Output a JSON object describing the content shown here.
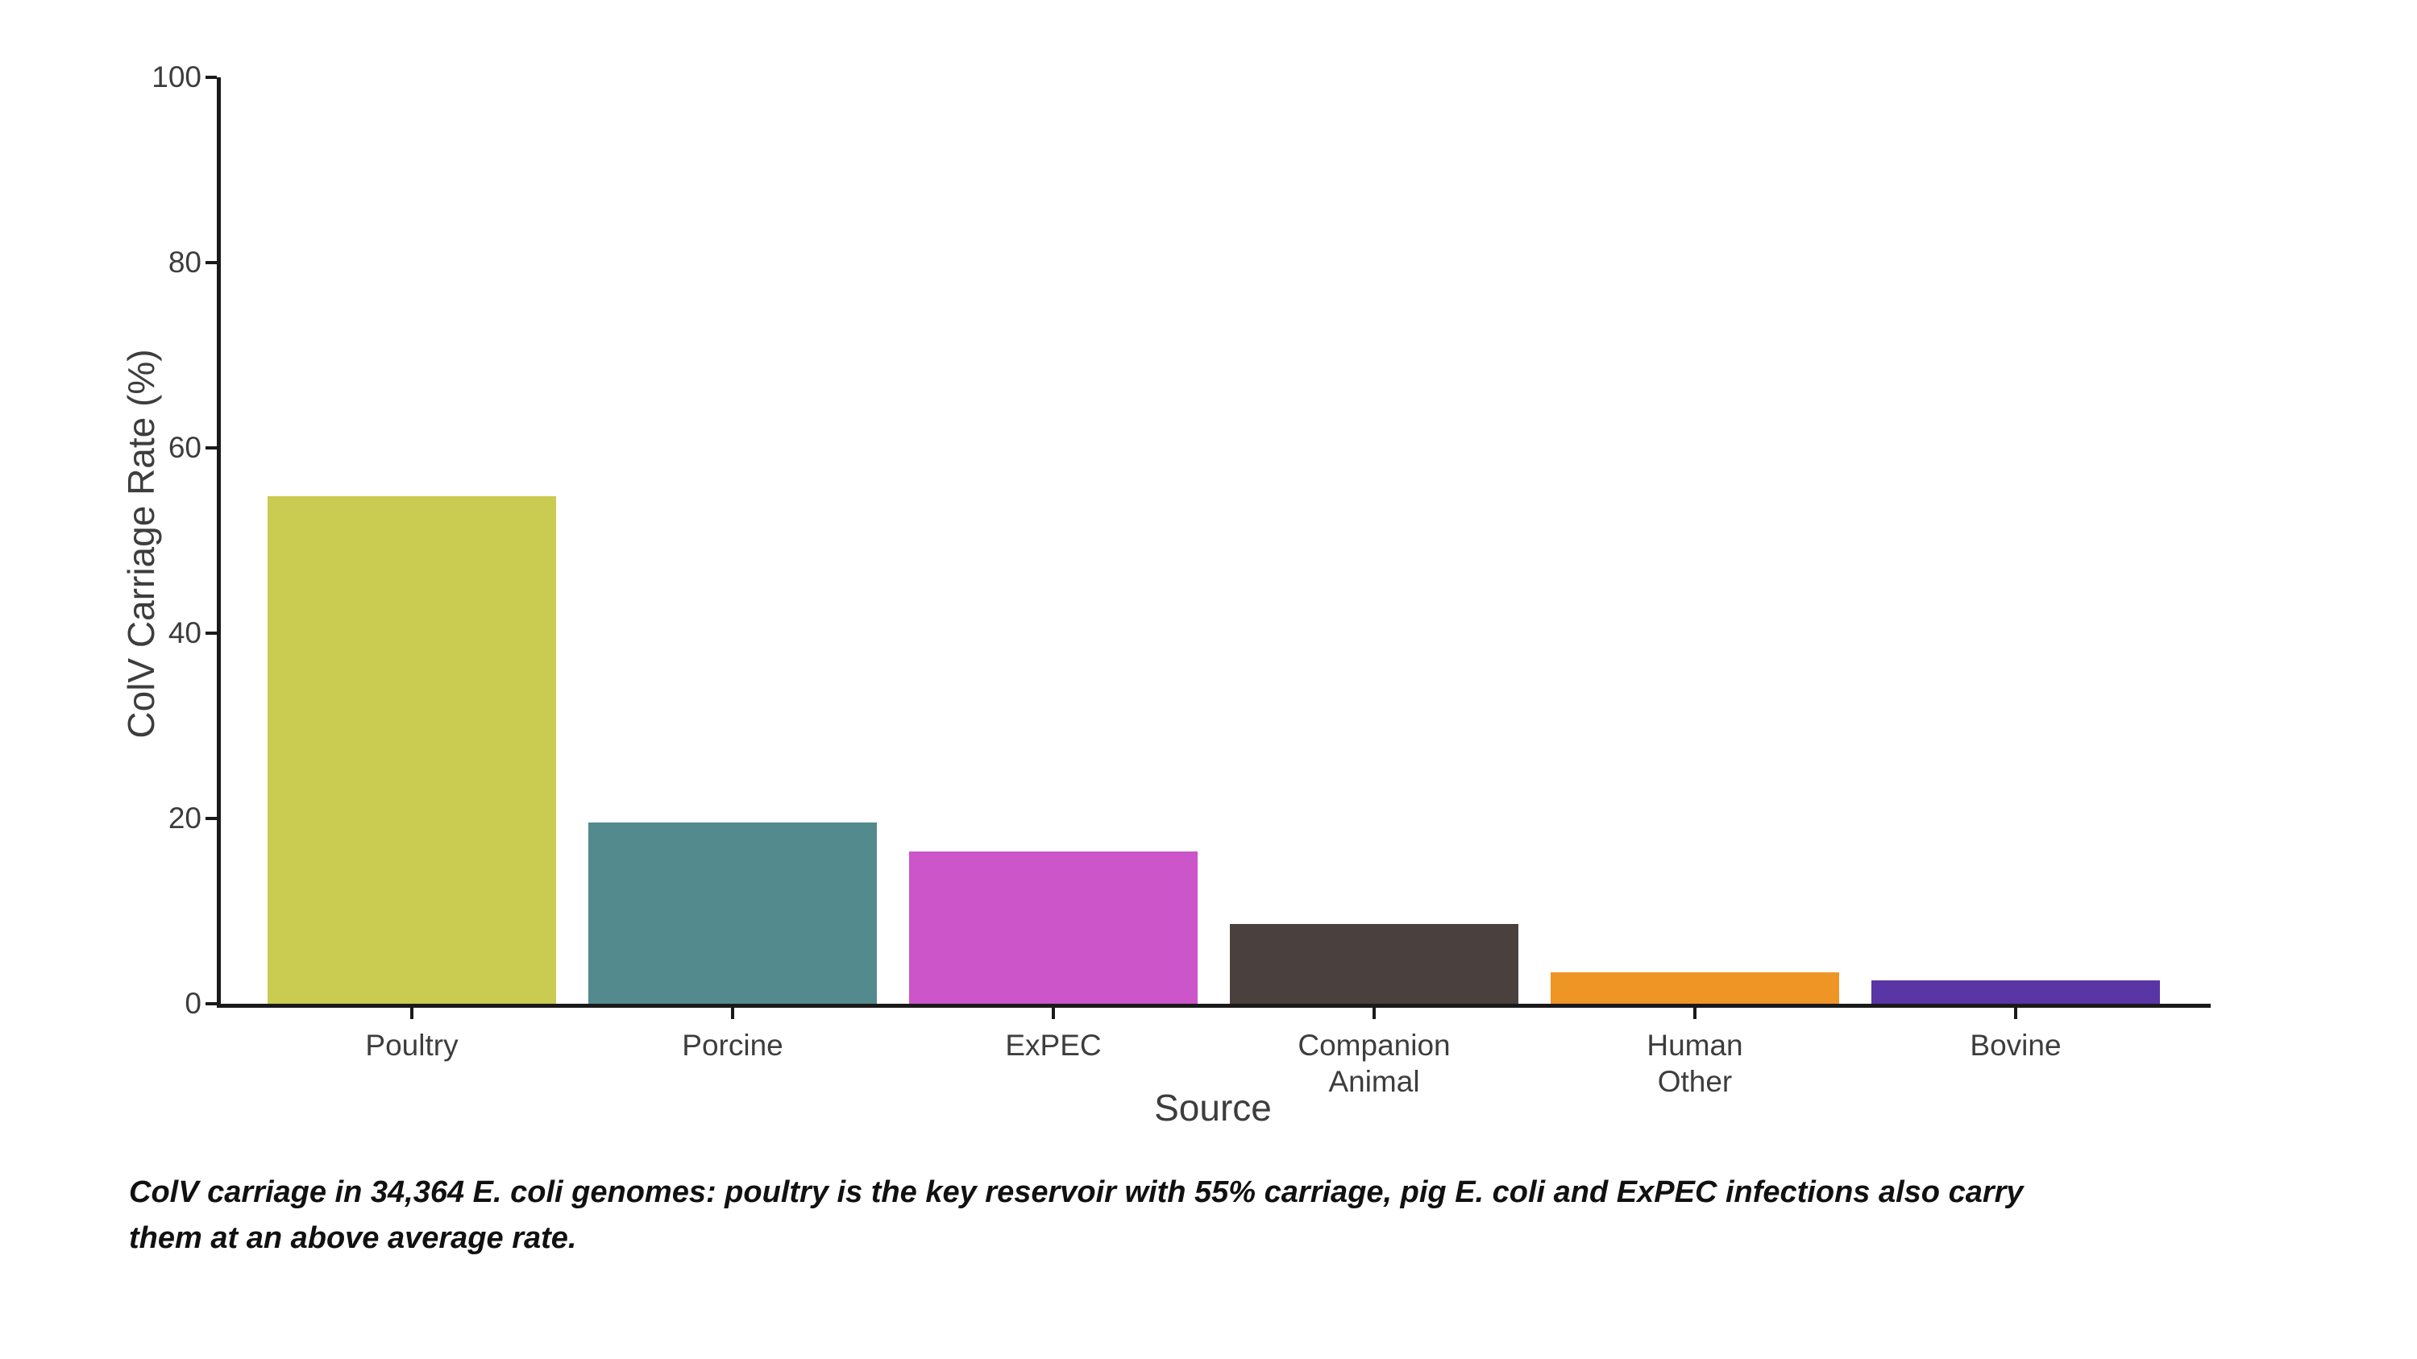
{
  "figure": {
    "background": "#ffffff",
    "axis_color": "#1a1a1a",
    "label_color": "#3d3d3d"
  },
  "chart_data": {
    "type": "bar",
    "title": "",
    "xlabel": "Source",
    "ylabel": "ColV Carriage Rate (%)",
    "categories": [
      "Poultry",
      "Porcine",
      "ExPEC",
      "Companion\nAnimal",
      "Human\nOther",
      "Bovine"
    ],
    "values": [
      54.8,
      19.6,
      16.4,
      8.6,
      3.4,
      2.5
    ],
    "bar_colors": [
      "#c9cc51",
      "#538a8d",
      "#cb55c9",
      "#4a403d",
      "#ef9526",
      "#5a35a5"
    ],
    "ylim": [
      0,
      100
    ],
    "yticks": [
      0,
      20,
      40,
      60,
      80,
      100
    ],
    "grid": false,
    "legend": "none"
  },
  "caption": {
    "lines": [
      "ColV carriage in 34,364 E. coli genomes: poultry is the key reservoir with 55% carriage, pig E. coli and ExPEC infections also carry",
      "them at an above average rate."
    ]
  }
}
